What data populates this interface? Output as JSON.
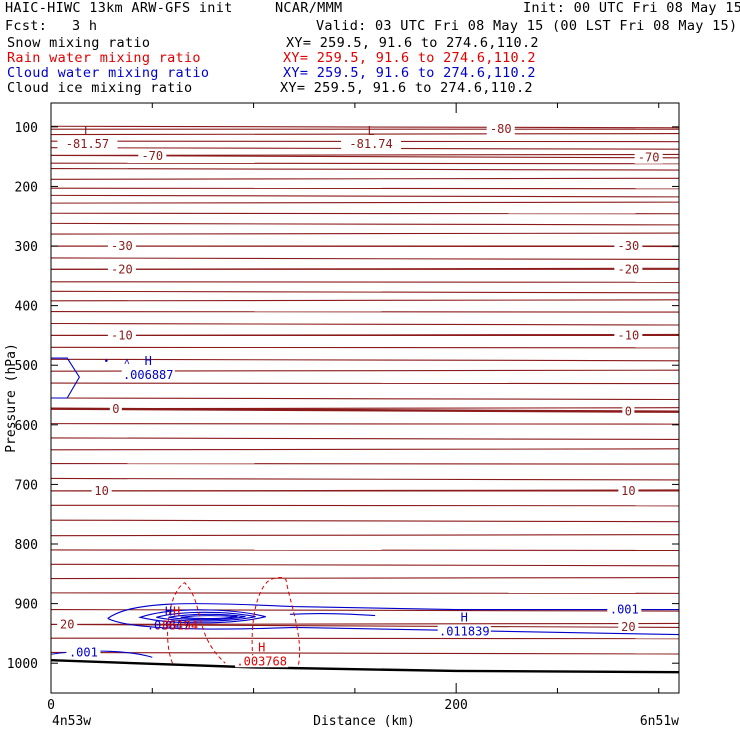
{
  "header": {
    "model": "HAIC-HIWC 13km ARW-GFS init",
    "org": "NCAR/MMM",
    "init": "Init: 00 UTC Fri 08 May 15",
    "fcst_label": "Fcst:",
    "fcst_value": "3 h",
    "valid": "Valid: 03 UTC Fri 08 May 15 (00 LST Fri 08 May 15)"
  },
  "fields": [
    {
      "name": "Snow mixing ratio",
      "xy": "XY= 259.5, 91.6 to 274.6,110.2",
      "color": "#000000"
    },
    {
      "name": "Rain water mixing ratio",
      "xy": "XY= 259.5, 91.6 to 274.6,110.2",
      "color": "#e00000"
    },
    {
      "name": "Cloud water mixing ratio",
      "xy": "XY= 259.5, 91.6 to 274.6,110.2",
      "color": "#0000cc"
    },
    {
      "name": "Cloud ice mixing ratio",
      "xy": "XY= 259.5, 91.6 to 274.6,110.2",
      "color": "#000000"
    }
  ],
  "colors": {
    "temperature": "#8b1a1a",
    "rain": "#e00000",
    "cloud_water": "#0000cc",
    "axis": "#000000"
  },
  "chart_data": {
    "type": "line",
    "xlabel": "Distance (km)",
    "ylabel": "Pressure (hPa)",
    "xlim": [
      0,
      310
    ],
    "ylim": [
      1050,
      60
    ],
    "x_ticks": [
      0,
      200
    ],
    "x_minor_ticks": [
      50,
      100,
      150,
      250,
      300
    ],
    "y_ticks": [
      100,
      200,
      300,
      400,
      500,
      600,
      700,
      800,
      900,
      1000
    ],
    "left_endpoint": "4n53w",
    "right_endpoint": "6n51w",
    "grid": false,
    "temperature_contours": [
      {
        "label": "-80",
        "p_left": 104,
        "p_right": 104,
        "label_x": [
          222
        ]
      },
      {
        "label": "-70",
        "p_left": 148,
        "p_right": 152,
        "label_x": [
          50,
          295
        ]
      },
      {
        "label": "-30",
        "p_left": 300,
        "p_right": 300,
        "label_x": [
          35,
          285
        ]
      },
      {
        "label": "-20",
        "p_left": 339,
        "p_right": 339,
        "label_x": [
          35,
          285
        ]
      },
      {
        "label": "-10",
        "p_left": 450,
        "p_right": 450,
        "label_x": [
          35,
          285
        ]
      },
      {
        "label": "0",
        "p_left": 573,
        "p_right": 578,
        "label_x": [
          32,
          285
        ]
      },
      {
        "label": "10",
        "p_left": 711,
        "p_right": 711,
        "label_x": [
          25,
          285
        ]
      },
      {
        "label": "20",
        "p_left": 935,
        "p_right": 940,
        "label_x": [
          8,
          285
        ]
      }
    ],
    "temperature_extrema": [
      {
        "type": "L",
        "value": "-81.57",
        "x": 18,
        "p": 99
      },
      {
        "type": "L",
        "value": "-81.74",
        "x": 158,
        "p": 99
      }
    ],
    "cloud_water": {
      "label": "0.001",
      "label_text": ".001",
      "extrema": [
        {
          "type": "H",
          "value": ".006887",
          "x": 48,
          "p": 505
        },
        {
          "type": "H",
          "value": ".011839",
          "x": 204,
          "p": 935
        },
        {
          "type": "H",
          "value": ".03847",
          "x": 58,
          "p": 925
        }
      ]
    },
    "rain_water": {
      "extrema": [
        {
          "type": "H",
          "value": ".06194",
          "x": 62,
          "p": 925
        },
        {
          "type": "H",
          "value": ".003768",
          "x": 104,
          "p": 985
        }
      ]
    },
    "terrain_surface": [
      {
        "x": 0,
        "p": 995
      },
      {
        "x": 100,
        "p": 1007
      },
      {
        "x": 200,
        "p": 1013
      },
      {
        "x": 310,
        "p": 1015
      }
    ]
  }
}
